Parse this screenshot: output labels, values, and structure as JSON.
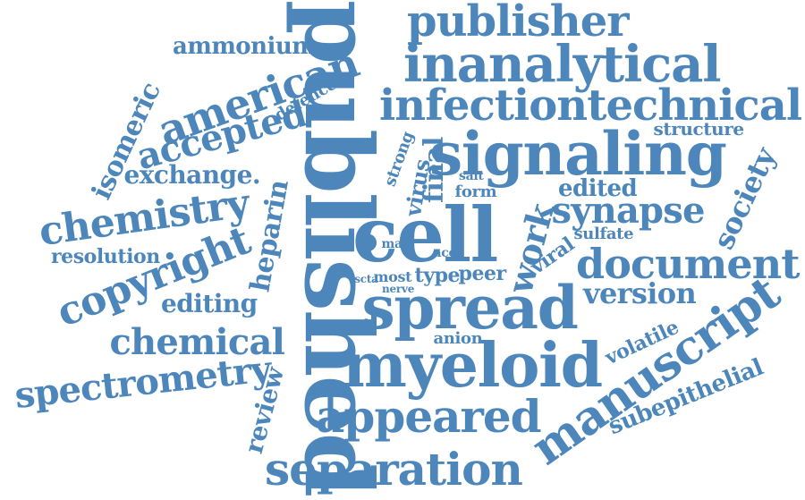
{
  "colors": {
    "word": "#4c86bb",
    "background": "#ffffff"
  },
  "words": [
    "published",
    "publisher",
    "inanalytical",
    "infectiontechnical",
    "signaling",
    "ammonium",
    "american",
    "defence",
    "isomeric",
    "accepted",
    "structure",
    "exchange.",
    "strong",
    "virus",
    "final",
    "salt",
    "form",
    "edited",
    "society",
    "chemistry",
    "heparin",
    "synapse",
    "cell",
    "work",
    "sulfate",
    "mas",
    "acc",
    "resolution",
    "copyright",
    "viral",
    "document",
    "vscta",
    "most",
    "type",
    "peer",
    "nerve",
    "editing",
    "version",
    "spread",
    "chemical",
    "anion",
    "volatile",
    "spectrometry",
    "review",
    "myeloid",
    "manuscript",
    "subepithelial",
    "appeared",
    "separation"
  ]
}
